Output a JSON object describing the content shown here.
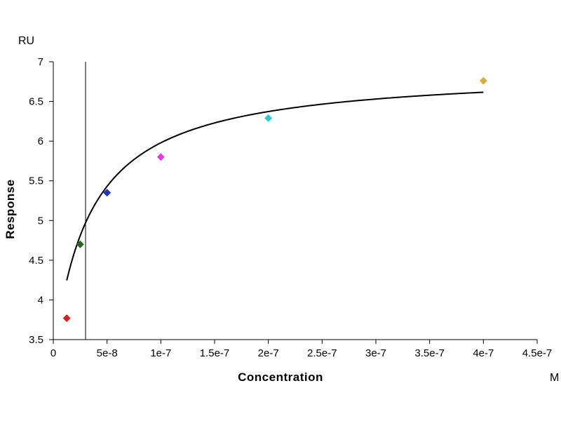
{
  "chart_data": {
    "type": "scatter",
    "title": "",
    "xlabel": "Concentration",
    "ylabel": "Response",
    "x_unit": "M",
    "y_unit": "RU",
    "xlim": [
      0,
      4.5e-07
    ],
    "ylim": [
      3.5,
      7
    ],
    "x_ticks": [
      {
        "value": 0,
        "label": "0"
      },
      {
        "value": 5e-08,
        "label": "5e-8"
      },
      {
        "value": 1e-07,
        "label": "1e-7"
      },
      {
        "value": 1.5e-07,
        "label": "1.5e-7"
      },
      {
        "value": 2e-07,
        "label": "2e-7"
      },
      {
        "value": 2.5e-07,
        "label": "2.5e-7"
      },
      {
        "value": 3e-07,
        "label": "3e-7"
      },
      {
        "value": 3.5e-07,
        "label": "3.5e-7"
      },
      {
        "value": 4e-07,
        "label": "4e-7"
      },
      {
        "value": 4.5e-07,
        "label": "4.5e-7"
      }
    ],
    "y_ticks": [
      {
        "value": 3.5,
        "label": "3.5"
      },
      {
        "value": 4,
        "label": "4"
      },
      {
        "value": 4.5,
        "label": "4.5"
      },
      {
        "value": 5,
        "label": "5"
      },
      {
        "value": 5.5,
        "label": "5.5"
      },
      {
        "value": 6,
        "label": "6"
      },
      {
        "value": 6.5,
        "label": "6.5"
      },
      {
        "value": 7,
        "label": "7"
      }
    ],
    "points": [
      {
        "x": 1.25e-08,
        "y": 3.77,
        "color": "#d42020"
      },
      {
        "x": 2.5e-08,
        "y": 4.7,
        "color": "#1e6b1e"
      },
      {
        "x": 5e-08,
        "y": 5.35,
        "color": "#2233cc"
      },
      {
        "x": 1e-07,
        "y": 5.8,
        "color": "#e040e0"
      },
      {
        "x": 2e-07,
        "y": 6.29,
        "color": "#30c8d0"
      },
      {
        "x": 4e-07,
        "y": 6.76,
        "color": "#e0a840"
      }
    ],
    "fit_curve": {
      "model": "hyperbolic",
      "x_range": [
        1.25e-08,
        4e-07
      ],
      "y0": 3.27,
      "rmax": 3.63,
      "kd": 3.4e-08
    },
    "reference_line": {
      "x": 3e-08
    },
    "grid": false,
    "legend": "none"
  }
}
